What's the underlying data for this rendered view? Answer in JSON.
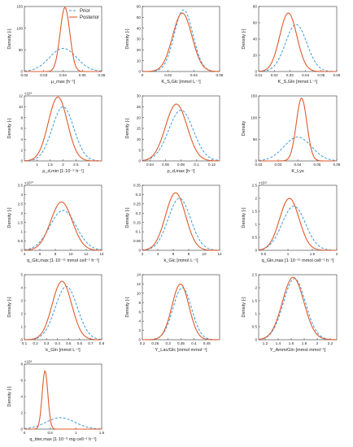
{
  "legend": {
    "prior_label": "Prior",
    "posterior_label": "Posterior",
    "placement": "top-right"
  },
  "colors": {
    "prior": "#3a9ad9",
    "posterior": "#e05a2b",
    "axis": "#333333"
  },
  "chart_data": [
    {
      "type": "line",
      "xlabel": "μ_max [h⁻¹]",
      "ylabel": "Density [-]",
      "xlim": [
        0.02,
        0.06
      ],
      "ylim": [
        0,
        160
      ],
      "xticks": [
        "0.02",
        "0.03",
        "0.04",
        "0.05",
        "0.06"
      ],
      "yticks": [
        "0",
        "50",
        "100",
        "150"
      ],
      "multiplier": "",
      "series": [
        {
          "name": "Prior",
          "dist": {
            "mean": 0.04,
            "sd": 0.007,
            "peak": 57
          }
        },
        {
          "name": "Posterior",
          "dist": {
            "mean": 0.041,
            "sd": 0.0025,
            "peak": 158
          }
        }
      ]
    },
    {
      "type": "line",
      "xlabel": "K_S,Glc [mmol L⁻¹]",
      "ylabel": "Density [-]",
      "xlim": [
        0,
        0.06
      ],
      "ylim": [
        0,
        60
      ],
      "xticks": [
        "0",
        "0.02",
        "0.04",
        "0.06"
      ],
      "yticks": [
        "0",
        "10",
        "20",
        "30",
        "40",
        "50",
        "60"
      ],
      "multiplier": "",
      "series": [
        {
          "name": "Prior",
          "dist": {
            "mean": 0.032,
            "sd": 0.0072,
            "peak": 57
          }
        },
        {
          "name": "Posterior",
          "dist": {
            "mean": 0.031,
            "sd": 0.0075,
            "peak": 54
          }
        }
      ]
    },
    {
      "type": "line",
      "xlabel": "K_S,Gln [mmol L⁻¹]",
      "ylabel": "Density [-]",
      "xlim": [
        0.01,
        0.06
      ],
      "ylim": [
        0,
        80
      ],
      "xticks": [
        "0.01",
        "0.02",
        "0.03",
        "0.04",
        "0.05",
        "0.06"
      ],
      "yticks": [
        "0",
        "20",
        "40",
        "60",
        "80"
      ],
      "multiplier": "",
      "series": [
        {
          "name": "Prior",
          "dist": {
            "mean": 0.034,
            "sd": 0.0068,
            "peak": 58
          }
        },
        {
          "name": "Posterior",
          "dist": {
            "mean": 0.029,
            "sd": 0.0055,
            "peak": 72
          }
        }
      ]
    },
    {
      "type": "line",
      "xlabel": "ρ_d,min [1·10⁻⁵ h⁻¹]",
      "ylabel": "Density [-]",
      "xlim": [
        0.5,
        3.5
      ],
      "ylim": [
        0,
        120000
      ],
      "xticks": [
        "1",
        "1.5",
        "2",
        "2.5",
        "3"
      ],
      "yticks": [
        "0",
        "2",
        "4",
        "6",
        "8",
        "10",
        "12"
      ],
      "multiplier": "×10⁴",
      "series": [
        {
          "name": "Prior",
          "dist": {
            "mean": 2.0,
            "sd": 0.42,
            "peak": 100000
          }
        },
        {
          "name": "Posterior",
          "dist": {
            "mean": 1.8,
            "sd": 0.37,
            "peak": 118000
          }
        }
      ]
    },
    {
      "type": "line",
      "xlabel": "ρ_d,max [h⁻¹]",
      "ylabel": "Density [-]",
      "xlim": [
        0.03,
        0.13
      ],
      "ylim": [
        0,
        32
      ],
      "xticks": [
        "0.04",
        "0.06",
        "0.08",
        "0.1",
        "0.12"
      ],
      "yticks": [
        "0",
        "5",
        "10",
        "15",
        "20",
        "25",
        "30"
      ],
      "multiplier": "",
      "series": [
        {
          "name": "Prior",
          "dist": {
            "mean": 0.08,
            "sd": 0.016,
            "peak": 25
          }
        },
        {
          "name": "Posterior",
          "dist": {
            "mean": 0.074,
            "sd": 0.014,
            "peak": 28
          }
        }
      ]
    },
    {
      "type": "line",
      "xlabel": "K_Lys",
      "ylabel": "Density",
      "xlim": [
        0.02,
        0.06
      ],
      "ylim": [
        0,
        150
      ],
      "xticks": [
        "0.02",
        "0.03",
        "0.04",
        "0.05",
        "0.06"
      ],
      "yticks": [
        "0",
        "50",
        "100",
        "150"
      ],
      "multiplier": "",
      "series": [
        {
          "name": "Prior",
          "dist": {
            "mean": 0.04,
            "sd": 0.007,
            "peak": 55
          }
        },
        {
          "name": "Posterior",
          "dist": {
            "mean": 0.042,
            "sd": 0.0027,
            "peak": 145
          }
        }
      ]
    },
    {
      "type": "line",
      "xlabel": "q_Glc,max [1·10⁻¹¹ mmol cell⁻¹ h⁻¹]",
      "ylabel": "Density [-]",
      "xlim": [
        4,
        14
      ],
      "ylim": [
        0,
        35000000000
      ],
      "xticks": [
        "4",
        "6",
        "8",
        "10",
        "12",
        "14"
      ],
      "yticks": [
        "0",
        "0.5",
        "1",
        "1.5",
        "2",
        "2.5",
        "3",
        "3.5"
      ],
      "multiplier": "×10¹⁰",
      "series": [
        {
          "name": "Prior",
          "dist": {
            "mean": 9,
            "sd": 1.7,
            "peak": 21500000000
          }
        },
        {
          "name": "Posterior",
          "dist": {
            "mean": 8.8,
            "sd": 1.4,
            "peak": 26000000000
          }
        }
      ]
    },
    {
      "type": "line",
      "xlabel": "k_Glc [mmol L⁻¹]",
      "ylabel": "Density [-]",
      "xlim": [
        2,
        12
      ],
      "ylim": [
        0,
        0.35
      ],
      "xticks": [
        "2",
        "4",
        "6",
        "8",
        "10",
        "12"
      ],
      "yticks": [
        "0",
        "0.05",
        "0.1",
        "0.15",
        "0.2",
        "0.25",
        "0.3",
        "0.35"
      ],
      "multiplier": "",
      "series": [
        {
          "name": "Prior",
          "dist": {
            "mean": 6.8,
            "sd": 1.45,
            "peak": 0.28
          }
        },
        {
          "name": "Posterior",
          "dist": {
            "mean": 6.3,
            "sd": 1.3,
            "peak": 0.31
          }
        }
      ]
    },
    {
      "type": "line",
      "xlabel": "q_Gln,max [1·10⁻¹¹ mmol cell⁻¹ h⁻¹]",
      "ylabel": "Density [-]",
      "xlim": [
        0.4,
        2
      ],
      "ylim": [
        0,
        250000000000
      ],
      "xticks": [
        "0.5",
        "1",
        "1.5",
        "2"
      ],
      "yticks": [
        "0",
        "0.5",
        "1",
        "1.5",
        "2",
        "2.5"
      ],
      "multiplier": "×10¹¹",
      "series": [
        {
          "name": "Prior",
          "dist": {
            "mean": 1.12,
            "sd": 0.24,
            "peak": 170000000000
          }
        },
        {
          "name": "Posterior",
          "dist": {
            "mean": 1.03,
            "sd": 0.2,
            "peak": 200000000000
          }
        }
      ]
    },
    {
      "type": "line",
      "xlabel": "k_Gln [mmol L⁻¹]",
      "ylabel": "Density [-]",
      "xlim": [
        0.1,
        0.8
      ],
      "ylim": [
        0,
        5
      ],
      "xticks": [
        "0.1",
        "0.2",
        "0.3",
        "0.4",
        "0.5",
        "0.6",
        "0.7",
        "0.8"
      ],
      "yticks": [
        "0",
        "1",
        "2",
        "3",
        "4",
        "5"
      ],
      "multiplier": "",
      "series": [
        {
          "name": "Prior",
          "dist": {
            "mean": 0.48,
            "sd": 0.1,
            "peak": 4.1
          }
        },
        {
          "name": "Posterior",
          "dist": {
            "mean": 0.44,
            "sd": 0.088,
            "peak": 4.5
          }
        }
      ]
    },
    {
      "type": "line",
      "xlabel": "Y_Lac/Glc [mmol mmol⁻¹]",
      "ylabel": "Density [-]",
      "xlim": [
        0.2,
        0.5
      ],
      "ylim": [
        0,
        14
      ],
      "xticks": [
        "0.2",
        "0.25",
        "0.3",
        "0.35",
        "0.4",
        "0.45"
      ],
      "yticks": [
        "0",
        "2",
        "4",
        "6",
        "8",
        "10",
        "12",
        "14"
      ],
      "multiplier": "",
      "series": [
        {
          "name": "Prior",
          "dist": {
            "mean": 0.355,
            "sd": 0.036,
            "peak": 11.2
          }
        },
        {
          "name": "Posterior",
          "dist": {
            "mean": 0.348,
            "sd": 0.033,
            "peak": 12
          }
        }
      ]
    },
    {
      "type": "line",
      "xlabel": "Y_Amm/Gln [mmol mmol⁻¹]",
      "ylabel": "Density [-]",
      "xlim": [
        1.1,
        2.3
      ],
      "ylim": [
        0,
        2.5
      ],
      "xticks": [
        "1.2",
        "1.4",
        "1.6",
        "1.8",
        "2",
        "2.2"
      ],
      "yticks": [
        "0",
        "0.5",
        "1",
        "1.5",
        "2",
        "2.5"
      ],
      "multiplier": "",
      "series": [
        {
          "name": "Prior",
          "dist": {
            "mean": 1.65,
            "sd": 0.17,
            "peak": 2.35
          }
        },
        {
          "name": "Posterior",
          "dist": {
            "mean": 1.63,
            "sd": 0.165,
            "peak": 2.4
          }
        }
      ]
    },
    {
      "type": "line",
      "xlabel": "q_titer,max [1·10⁻⁹ mg cell⁻¹ h⁻¹]",
      "ylabel": "Density [-]",
      "xlim": [
        0,
        1.5
      ],
      "ylim": [
        0,
        800000000
      ],
      "xticks": [
        "0",
        "0.5",
        "1",
        "1.5"
      ],
      "yticks": [
        "0",
        "2",
        "4",
        "6",
        "8"
      ],
      "multiplier": "×10⁸",
      "series": [
        {
          "name": "Prior",
          "dist": {
            "mean": 0.7,
            "sd": 0.28,
            "peak": 140000000
          }
        },
        {
          "name": "Posterior",
          "dist": {
            "mean": 0.4,
            "sd": 0.055,
            "peak": 720000000
          }
        }
      ]
    }
  ]
}
